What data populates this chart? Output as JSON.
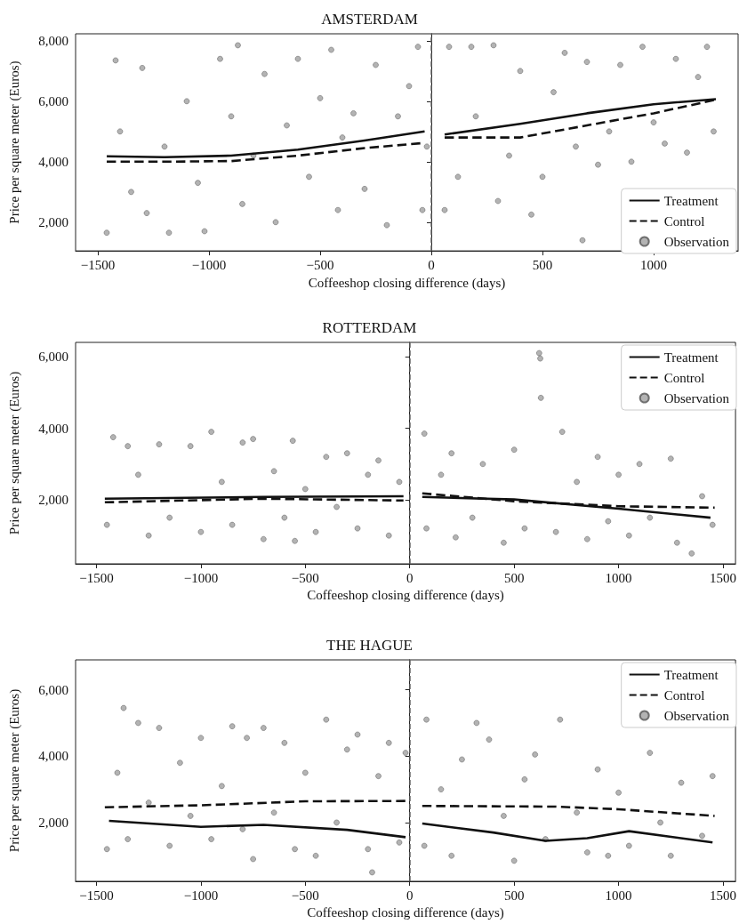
{
  "chart_data": [
    {
      "type": "scatter",
      "title": "AMSTERDAM",
      "xlabel": "Coffeeshop closing difference (days)",
      "ylabel": "Price per square meter (Euros)",
      "xlim": [
        -1600,
        1380
      ],
      "xticks": [
        {
          "value": -1500,
          "label": "−1500"
        },
        {
          "value": -1000,
          "label": "−1000"
        },
        {
          "value": -500,
          "label": "−500"
        },
        0,
        500,
        1000
      ],
      "ylim": [
        1050,
        8230
      ],
      "yticks": [
        {
          "value": 2000,
          "label": "2,000"
        },
        {
          "value": 4000,
          "label": "4,000"
        },
        {
          "value": 6000,
          "label": "6,000"
        },
        {
          "value": 8000,
          "label": "8,000"
        }
      ],
      "grid": false,
      "legend": "bottom right",
      "ref_lines": [
        {
          "axis": "x",
          "value": 0,
          "color": "#666666",
          "line_style": "dashed"
        }
      ],
      "series": [
        {
          "name": "Treatment",
          "type": "line",
          "color": "#111111",
          "line_style": "solid",
          "marker": "none",
          "x": [
            -1460,
            -1200,
            -900,
            -600,
            -300,
            -30,
            0,
            60,
            400,
            700,
            1000,
            1280
          ],
          "values": [
            4180,
            4150,
            4200,
            4400,
            4700,
            5000,
            null,
            4900,
            5250,
            5600,
            5900,
            6070
          ]
        },
        {
          "name": "Control",
          "type": "line",
          "color": "#111111",
          "line_style": "dashed",
          "marker": "none",
          "x": [
            -1460,
            -1200,
            -900,
            -600,
            -300,
            -30,
            0,
            60,
            400,
            700,
            1000,
            1280
          ],
          "values": [
            4000,
            4000,
            4020,
            4200,
            4450,
            4620,
            null,
            4800,
            4800,
            5200,
            5600,
            6050
          ]
        },
        {
          "name": "Observation",
          "color": "#a0a0a0",
          "marker": "circle",
          "x": [
            -1460,
            -1420,
            -1400,
            -1350,
            -1300,
            -1280,
            -1200,
            -1180,
            -1100,
            -1050,
            -1020,
            -950,
            -900,
            -870,
            -850,
            -800,
            -750,
            -700,
            -650,
            -600,
            -550,
            -500,
            -450,
            -420,
            -400,
            -350,
            -300,
            -250,
            -200,
            -150,
            -100,
            -60,
            -40,
            -20,
            60,
            80,
            120,
            180,
            200,
            280,
            300,
            350,
            400,
            450,
            500,
            550,
            600,
            650,
            680,
            700,
            750,
            800,
            850,
            900,
            950,
            1000,
            1050,
            1100,
            1150,
            1200,
            1240,
            1270
          ],
          "values": [
            1650,
            7350,
            5000,
            3000,
            7100,
            2300,
            4500,
            1650,
            6000,
            3300,
            1700,
            7400,
            5500,
            7850,
            2600,
            4200,
            6900,
            2000,
            5200,
            7400,
            3500,
            6100,
            7700,
            2400,
            4800,
            5600,
            3100,
            7200,
            1900,
            5500,
            6500,
            7800,
            2400,
            4500,
            2400,
            7800,
            3500,
            7800,
            5500,
            7850,
            2700,
            4200,
            7000,
            2250,
            3500,
            6300,
            7600,
            4500,
            1400,
            7300,
            3900,
            5000,
            7200,
            4000,
            7800,
            5300,
            4600,
            7400,
            4300,
            6800,
            7800,
            5000
          ]
        }
      ]
    },
    {
      "type": "scatter",
      "title": "ROTTERDAM",
      "xlabel": "Coffeeshop closing difference (days)",
      "ylabel": "Price per square meter (Euros)",
      "xlim": [
        -1600,
        1560
      ],
      "xticks": [
        {
          "value": -1500,
          "label": "−1500"
        },
        {
          "value": -1000,
          "label": "−1000"
        },
        {
          "value": -500,
          "label": "−500"
        },
        0,
        500,
        1000,
        1500
      ],
      "ylim": [
        210,
        6400
      ],
      "yticks": [
        {
          "value": 2000,
          "label": "2,000"
        },
        {
          "value": 4000,
          "label": "4,000"
        },
        {
          "value": 6000,
          "label": "6,000"
        }
      ],
      "grid": false,
      "legend": "top right",
      "ref_lines": [
        {
          "axis": "x",
          "value": 0,
          "color": "#666666",
          "line_style": "dashed"
        }
      ],
      "series": [
        {
          "name": "Treatment",
          "type": "line",
          "color": "#111111",
          "line_style": "solid",
          "marker": "none",
          "x": [
            -1460,
            -700,
            -30,
            0,
            60,
            500,
            1000,
            1440
          ],
          "values": [
            2030,
            2080,
            2100,
            null,
            2080,
            2010,
            1750,
            1500
          ]
        },
        {
          "name": "Control",
          "type": "line",
          "color": "#111111",
          "line_style": "dashed",
          "marker": "none",
          "x": [
            -1460,
            -700,
            -30,
            0,
            60,
            500,
            1000,
            1460
          ],
          "values": [
            1930,
            2030,
            1980,
            null,
            2180,
            1960,
            1820,
            1780
          ]
        },
        {
          "name": "Observation",
          "color": "#a0a0a0",
          "marker": "circle",
          "x": [
            -1450,
            -1420,
            -1350,
            -1300,
            -1250,
            -1200,
            -1150,
            -1050,
            -1000,
            -950,
            -900,
            -850,
            -800,
            -750,
            -700,
            -650,
            -600,
            -560,
            -550,
            -500,
            -450,
            -400,
            -350,
            -300,
            -250,
            -200,
            -150,
            -100,
            -50,
            70,
            80,
            150,
            200,
            220,
            300,
            350,
            450,
            500,
            550,
            620,
            625,
            628,
            700,
            730,
            800,
            850,
            900,
            950,
            1000,
            1050,
            1100,
            1150,
            1250,
            1280,
            1350,
            1400,
            1450
          ],
          "values": [
            1300,
            3750,
            3500,
            2700,
            1000,
            3550,
            1500,
            3500,
            1100,
            3900,
            2500,
            1300,
            3600,
            3700,
            900,
            2800,
            1500,
            3650,
            850,
            2300,
            1100,
            3200,
            1800,
            3300,
            1200,
            2700,
            3100,
            1000,
            2500,
            3850,
            1200,
            2700,
            3300,
            950,
            1500,
            3000,
            800,
            3400,
            1200,
            6100,
            5950,
            4850,
            1100,
            3900,
            2500,
            900,
            3200,
            1400,
            2700,
            1000,
            3000,
            1500,
            3150,
            800,
            500,
            2100,
            1300
          ]
        }
      ]
    },
    {
      "type": "scatter",
      "title": "THE HAGUE",
      "xlabel": "Coffeeshop closing difference (days)",
      "ylabel": "Price per square meter (Euros)",
      "xlim": [
        -1600,
        1560
      ],
      "xticks": [
        {
          "value": -1500,
          "label": "−1500"
        },
        {
          "value": -1000,
          "label": "−1000"
        },
        {
          "value": -500,
          "label": "−500"
        },
        0,
        500,
        1000,
        1500
      ],
      "ylim": [
        230,
        6900
      ],
      "yticks": [
        {
          "value": 2000,
          "label": "2,000"
        },
        {
          "value": 4000,
          "label": "4,000"
        },
        {
          "value": 6000,
          "label": "6,000"
        }
      ],
      "grid": false,
      "legend": "top right",
      "ref_lines": [
        {
          "axis": "x",
          "value": 0,
          "color": "#666666",
          "line_style": "dashed"
        }
      ],
      "series": [
        {
          "name": "Treatment",
          "type": "line",
          "color": "#111111",
          "line_style": "solid",
          "marker": "none",
          "x": [
            -1440,
            -1000,
            -700,
            -300,
            -20,
            0,
            60,
            400,
            650,
            850,
            1050,
            1450
          ],
          "values": [
            2050,
            1870,
            1930,
            1780,
            1560,
            null,
            1970,
            1700,
            1450,
            1530,
            1740,
            1400
          ]
        },
        {
          "name": "Control",
          "type": "line",
          "color": "#111111",
          "line_style": "dashed",
          "marker": "none",
          "x": [
            -1460,
            -1000,
            -500,
            -20,
            0,
            60,
            700,
            1000,
            1460
          ],
          "values": [
            2460,
            2520,
            2640,
            2650,
            null,
            2500,
            2480,
            2400,
            2200
          ]
        },
        {
          "name": "Observation",
          "color": "#a0a0a0",
          "marker": "circle",
          "x": [
            -1450,
            -1400,
            -1370,
            -1350,
            -1300,
            -1250,
            -1200,
            -1150,
            -1100,
            -1050,
            -1000,
            -950,
            -900,
            -850,
            -800,
            -780,
            -750,
            -700,
            -650,
            -600,
            -550,
            -500,
            -450,
            -400,
            -350,
            -300,
            -250,
            -200,
            -180,
            -150,
            -100,
            -50,
            -20,
            70,
            80,
            150,
            200,
            250,
            320,
            380,
            450,
            500,
            550,
            600,
            650,
            720,
            800,
            850,
            900,
            950,
            1000,
            1050,
            1150,
            1200,
            1250,
            1300,
            1400,
            1450
          ],
          "values": [
            1200,
            3500,
            5450,
            1500,
            5000,
            2600,
            4850,
            1300,
            3800,
            2200,
            4550,
            1500,
            3100,
            4900,
            1800,
            4550,
            900,
            4850,
            2300,
            4400,
            1200,
            3500,
            1000,
            5100,
            2000,
            4200,
            4650,
            1200,
            500,
            3400,
            4400,
            1400,
            4100,
            1300,
            5100,
            3000,
            1000,
            3900,
            5000,
            4500,
            2200,
            850,
            3300,
            4050,
            1500,
            5100,
            2300,
            1100,
            3600,
            1000,
            2900,
            1300,
            4100,
            2000,
            1000,
            3200,
            1600,
            3400
          ]
        }
      ]
    }
  ]
}
